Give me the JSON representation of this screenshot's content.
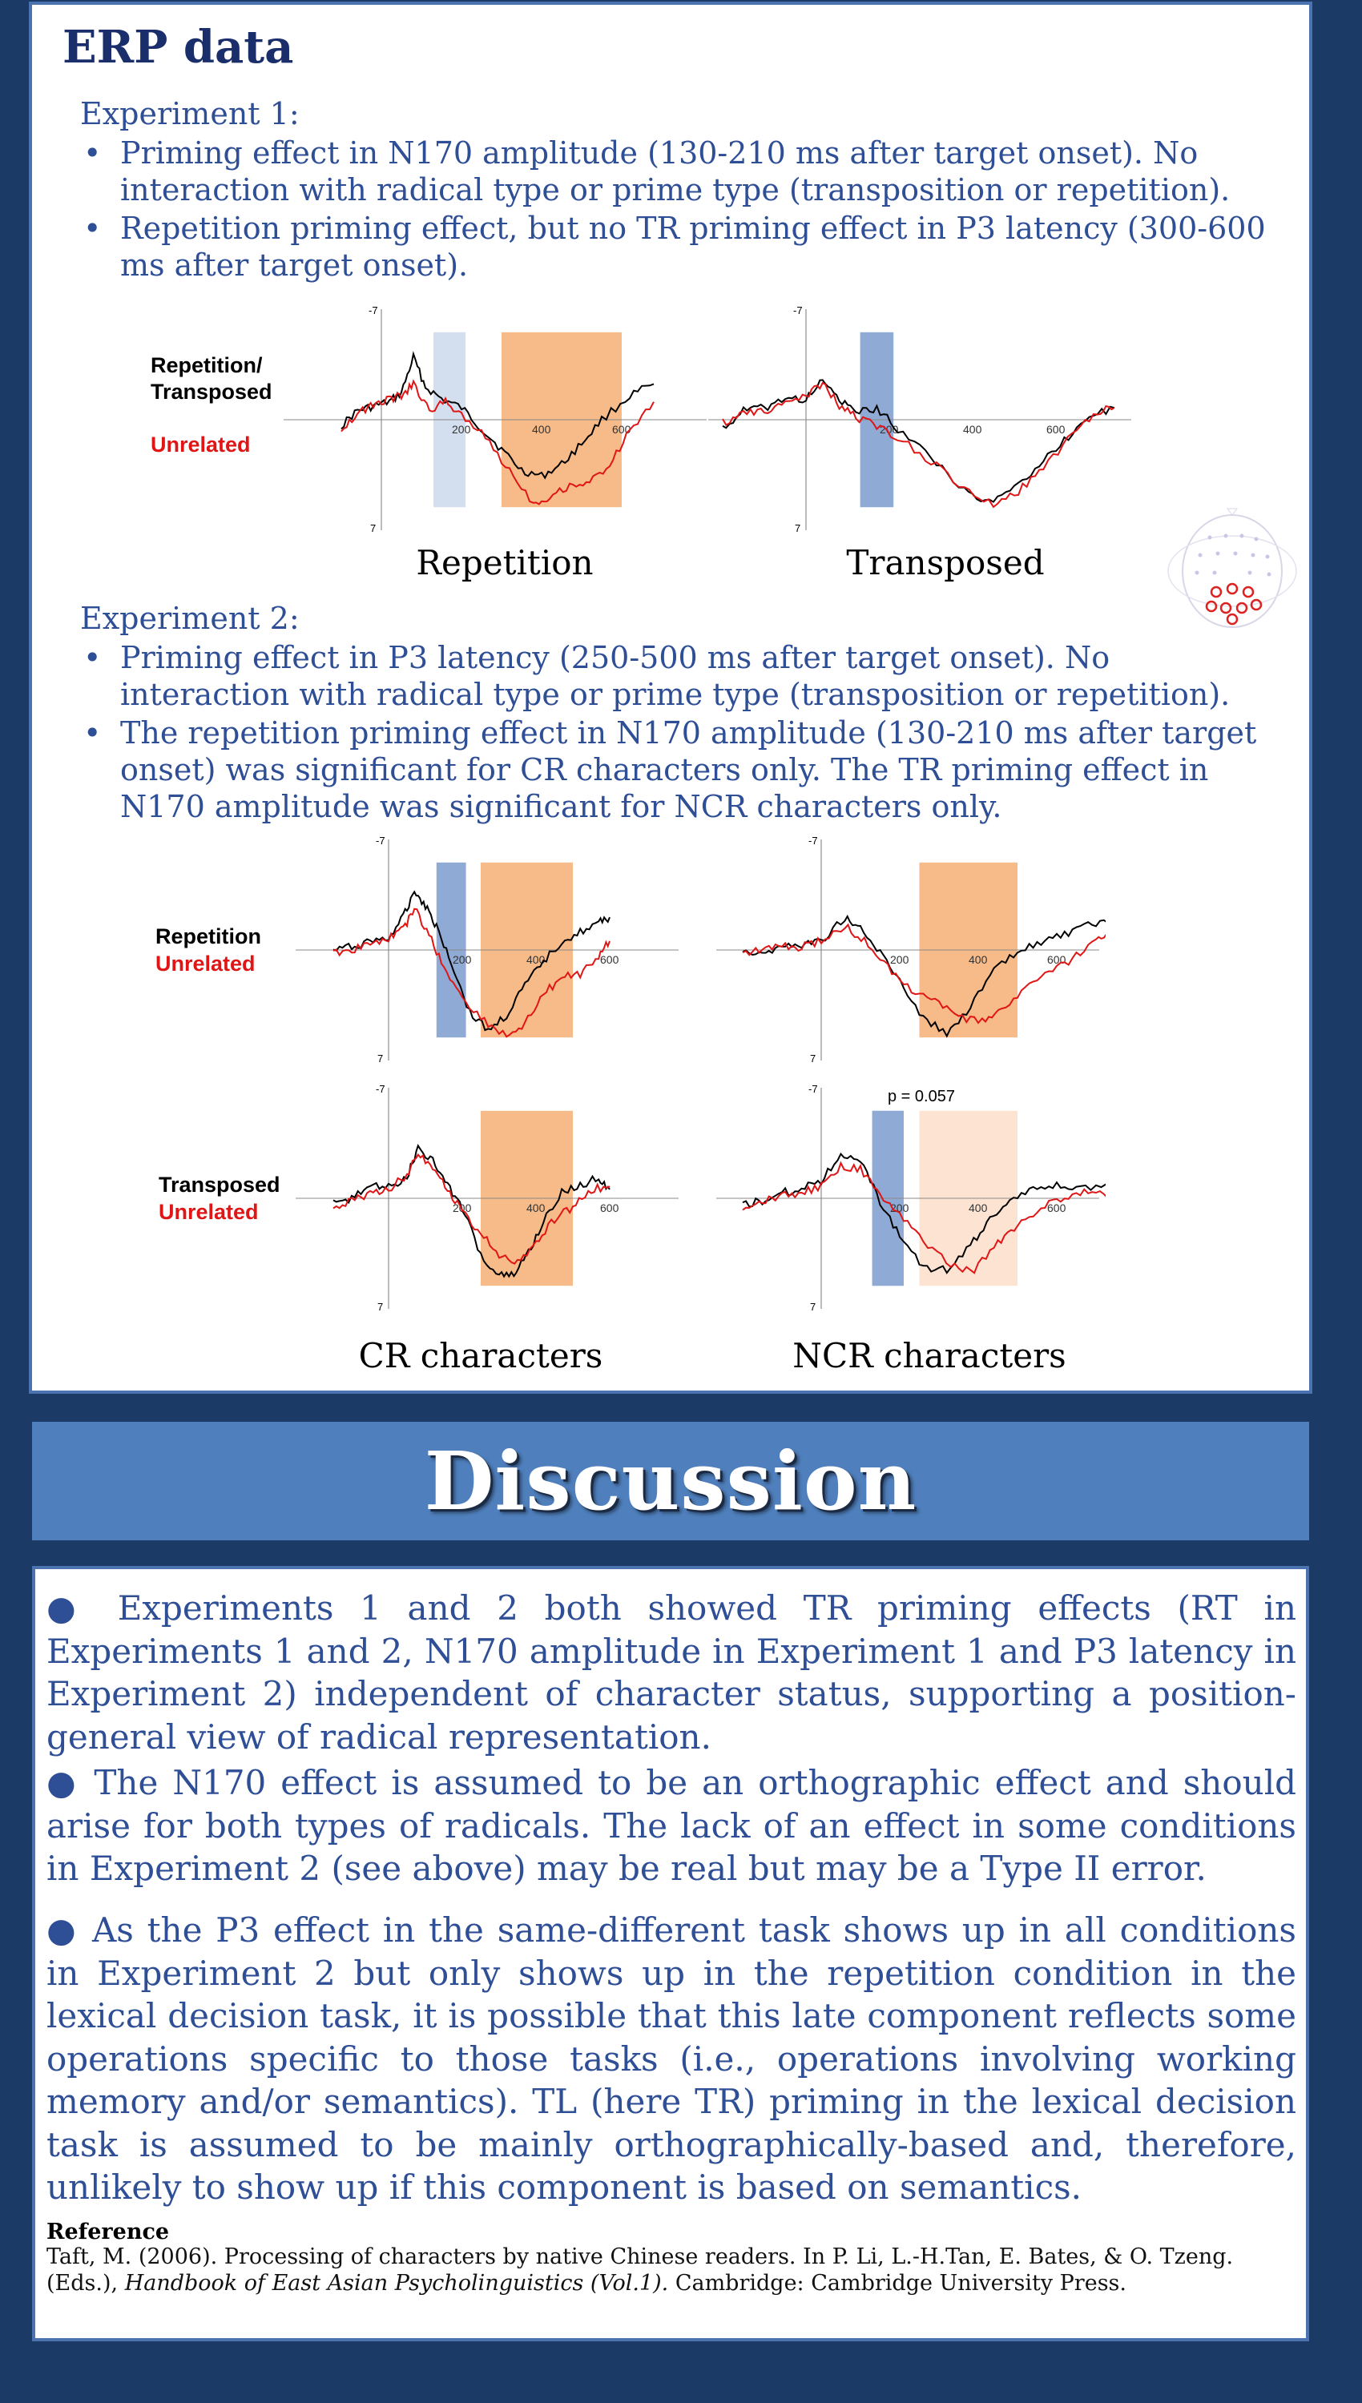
{
  "erp": {
    "heading": "ERP data",
    "exp1": {
      "title": "Experiment 1:",
      "bullets": [
        "Priming effect in N170 amplitude (130-210 ms after target onset). No interaction with radical type or prime type (transposition or repetition).",
        "Repetition priming effect, but no TR priming effect in P3 latency (300-600 ms after target onset)."
      ],
      "legend_black": "Repetition/ Transposed",
      "legend_red": "Unrelated",
      "caption_left": "Repetition",
      "caption_right": "Transposed"
    },
    "exp2": {
      "title": "Experiment 2:",
      "bullets": [
        "Priming effect in P3 latency (250-500 ms after target onset). No interaction with radical type or prime type (transposition or repetition).",
        "The repetition priming effect in N170 amplitude (130-210 ms after target onset) was significant for CR characters only. The TR priming effect in N170 amplitude was significant for NCR characters only."
      ],
      "row1_legend_black": "Repetition",
      "row1_legend_red": "Unrelated",
      "row2_legend_black": "Transposed",
      "row2_legend_red": "Unrelated",
      "p_value_label": "p = 0.057",
      "caption_left": "CR characters",
      "caption_right": "NCR characters"
    },
    "axis": {
      "top": "-7",
      "bottom": "7",
      "ticks": [
        "200",
        "400",
        "600"
      ]
    },
    "colors": {
      "n170_window": "#8faad4",
      "n170_window_light": "#d3deee",
      "p3_window": "#f7bb89",
      "p3_window_light": "#fce3d2",
      "unrelated_line": "#e01515",
      "primed_line": "#000000"
    }
  },
  "discussion": {
    "title": "Discussion",
    "bullets": [
      "Experiments 1 and 2 both showed TR priming effects (RT in Experiments 1 and 2, N170 amplitude in Experiment 1 and P3 latency in Experiment 2) independent of character status, supporting a position-general view of radical representation.",
      "The N170 effect is assumed to be an orthographic effect and should arise for both types of radicals. The lack of an effect in some conditions in Experiment 2 (see above) may be real but may be a Type II error.",
      "As the P3 effect in the same-different task shows up in all conditions in Experiment 2 but only shows up in the repetition condition in the lexical decision task, it is possible that this late component reflects some operations specific to those tasks (i.e., operations involving working memory and/or semantics). TL (here TR) priming in the lexical decision task is assumed to be mainly orthographically-based and, therefore, unlikely to show up if this component is based on semantics."
    ],
    "reference_title": "Reference",
    "reference_text_a": "Taft, M. (2006). Processing of characters by native Chinese readers. In P. Li, L.-H.Tan, E. Bates, & O. Tzeng. (Eds.),",
    "reference_italic": "Handbook of East Asian Psycholinguistics (Vol.1).",
    "reference_text_b": "Cambridge: Cambridge University Press."
  }
}
